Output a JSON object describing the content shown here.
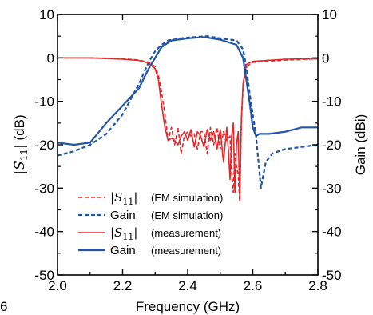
{
  "chart_data": {
    "type": "line",
    "xlabel": "Frequency (GHz)",
    "ylabel_left": "|S11| (dB)",
    "ylabel_right": "Gain (dBi)",
    "xlim": [
      2.0,
      2.8
    ],
    "ylim_left": [
      -50,
      10
    ],
    "ylim_right": [
      -50,
      10
    ],
    "x_ticks": [
      "2.0",
      "2.2",
      "2.4",
      "2.6",
      "2.8"
    ],
    "y_ticks_left": [
      "10",
      "0",
      "-10",
      "-20",
      "-30",
      "-40",
      "-50"
    ],
    "y_ticks_right": [
      "10",
      "0",
      "-10",
      "-20",
      "-30",
      "-40",
      "-50"
    ],
    "grid": false,
    "legend_placement": "bottom-left",
    "series": [
      {
        "name": "|S11|",
        "note": "(EM simulation)",
        "axis": "left",
        "color": "#e8262a",
        "style": "dashed",
        "x": [
          2.0,
          2.1,
          2.2,
          2.25,
          2.28,
          2.3,
          2.31,
          2.32,
          2.33,
          2.335,
          2.34,
          2.35,
          2.36,
          2.37,
          2.38,
          2.39,
          2.4,
          2.41,
          2.42,
          2.43,
          2.44,
          2.45,
          2.46,
          2.47,
          2.48,
          2.49,
          2.5,
          2.51,
          2.52,
          2.53,
          2.535,
          2.54,
          2.545,
          2.55,
          2.555,
          2.56,
          2.565,
          2.57,
          2.58,
          2.6,
          2.7,
          2.8
        ],
        "y": [
          0,
          0,
          -0.2,
          -0.5,
          -1,
          -2,
          -4,
          -8,
          -13,
          -16,
          -19,
          -16,
          -20,
          -16,
          -22,
          -18,
          -17,
          -18,
          -17.5,
          -21,
          -17,
          -17,
          -22,
          -16,
          -20,
          -16,
          -21,
          -17,
          -19,
          -18,
          -26,
          -31,
          -22,
          -25,
          -27,
          -33,
          -15,
          -7,
          -2,
          -1,
          -0.5,
          -0.2
        ]
      },
      {
        "name": "Gain",
        "note": "(EM simulation)",
        "axis": "right",
        "color": "#2155a8",
        "style": "dashed",
        "x": [
          2.0,
          2.05,
          2.1,
          2.15,
          2.2,
          2.25,
          2.28,
          2.3,
          2.32,
          2.34,
          2.38,
          2.42,
          2.46,
          2.5,
          2.55,
          2.57,
          2.58,
          2.59,
          2.6,
          2.61,
          2.62,
          2.625,
          2.63,
          2.64,
          2.66,
          2.7,
          2.75,
          2.8
        ],
        "y": [
          -22.5,
          -21.5,
          -20,
          -17.5,
          -13,
          -6,
          -1,
          1.5,
          3,
          4,
          4.5,
          4.8,
          5,
          4.5,
          4,
          2,
          -2,
          -8,
          -13,
          -18,
          -26,
          -30,
          -28,
          -24,
          -22,
          -21,
          -20.5,
          -20
        ]
      },
      {
        "name": "|S11|",
        "note": "(measurement)",
        "axis": "left",
        "color": "#e8262a",
        "style": "solid",
        "x": [
          2.0,
          2.1,
          2.2,
          2.25,
          2.28,
          2.3,
          2.31,
          2.32,
          2.33,
          2.34,
          2.35,
          2.36,
          2.37,
          2.38,
          2.39,
          2.4,
          2.41,
          2.42,
          2.43,
          2.44,
          2.45,
          2.46,
          2.47,
          2.48,
          2.49,
          2.5,
          2.51,
          2.52,
          2.525,
          2.53,
          2.535,
          2.54,
          2.545,
          2.55,
          2.555,
          2.56,
          2.565,
          2.57,
          2.58,
          2.6,
          2.7,
          2.8
        ],
        "y": [
          0,
          0,
          -0.3,
          -0.6,
          -1.2,
          -2.5,
          -5,
          -11,
          -16,
          -19,
          -18.5,
          -19,
          -20,
          -18,
          -17,
          -19,
          -16.5,
          -20.5,
          -17,
          -18,
          -20.5,
          -16.5,
          -19,
          -17,
          -21,
          -16.5,
          -24,
          -16,
          -21,
          -28,
          -18,
          -15,
          -31,
          -20,
          -17,
          -33,
          -14,
          -6,
          -1.5,
          -0.8,
          -0.3,
          -0.2
        ]
      },
      {
        "name": "Gain",
        "note": "(measurement)",
        "axis": "right",
        "color": "#2155a8",
        "style": "solid",
        "x": [
          2.0,
          2.05,
          2.1,
          2.15,
          2.2,
          2.25,
          2.28,
          2.3,
          2.32,
          2.35,
          2.4,
          2.45,
          2.5,
          2.55,
          2.57,
          2.59,
          2.6,
          2.61,
          2.62,
          2.65,
          2.7,
          2.75,
          2.8
        ],
        "y": [
          -19.5,
          -20,
          -19.5,
          -15,
          -11,
          -7,
          -2.5,
          0,
          2.5,
          4,
          4.5,
          4.8,
          4.2,
          3,
          0,
          -10,
          -16,
          -18,
          -17.5,
          -17.5,
          -17,
          -16,
          -16
        ]
      }
    ]
  },
  "legend": [
    {
      "main": "|S11|",
      "sub": "(EM simulation)"
    },
    {
      "main": "Gain",
      "sub": "(EM simulation)"
    },
    {
      "main": "|S11|",
      "sub": "(measurement)"
    },
    {
      "main": "Gain",
      "sub": "(measurement)"
    }
  ],
  "corner_fragment": "6"
}
